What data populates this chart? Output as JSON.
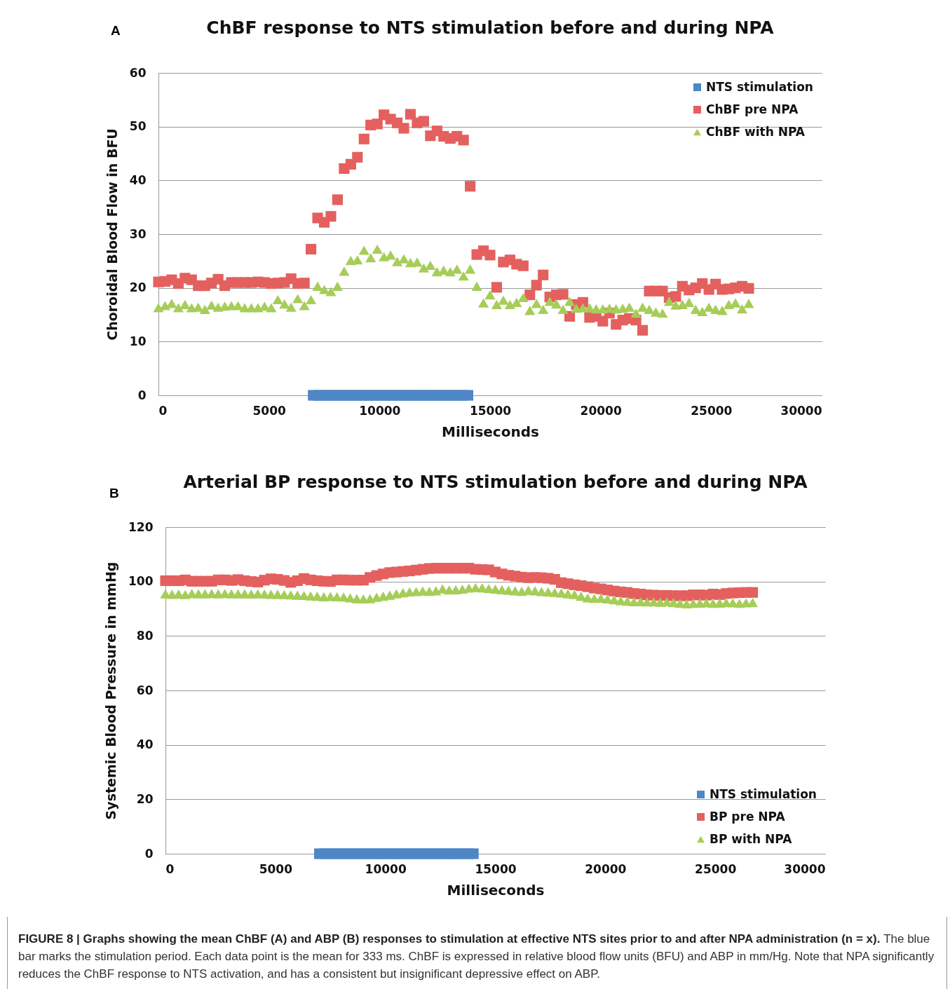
{
  "chart_data": [
    {
      "type": "scatter",
      "title": "ChBF response to NTS stimulation before and during NPA",
      "xlabel": "Milliseconds",
      "ylabel": "Choroidal Blood Flow in BFU",
      "annotations": [
        "A"
      ],
      "xlim": [
        0,
        30000
      ],
      "xticks": [
        0,
        5000,
        10000,
        15000,
        20000,
        25000,
        30000
      ],
      "ylim": [
        0,
        60
      ],
      "yticks": [
        0,
        10,
        20,
        30,
        40,
        50,
        60
      ],
      "grid": "y",
      "legend": "top right",
      "x": [
        0,
        300,
        600,
        900,
        1200,
        1500,
        1800,
        2100,
        2400,
        2700,
        3000,
        3300,
        3600,
        3900,
        4200,
        4500,
        4800,
        5100,
        5400,
        5700,
        6000,
        6300,
        6600,
        6900,
        7200,
        7500,
        7800,
        8100,
        8400,
        8700,
        9000,
        9300,
        9600,
        9900,
        10200,
        10500,
        10800,
        11100,
        11400,
        11700,
        12000,
        12300,
        12600,
        12900,
        13200,
        13500,
        13800,
        14100,
        14400,
        14700,
        15000,
        15300,
        15600,
        15900,
        16200,
        16500,
        16800,
        17100,
        17400,
        17700,
        18000,
        18300,
        18600,
        18900,
        19200,
        19500,
        19800,
        20100,
        20400,
        20700,
        21000,
        21300,
        21600,
        21900,
        22200,
        22500,
        22800,
        23100,
        23400,
        23700,
        24000,
        24300,
        24600,
        24900,
        25200,
        25500,
        25800,
        26100,
        26400,
        26700
      ],
      "series": [
        {
          "name": "NTS stimulation",
          "color": "#4f86c6",
          "marker": "square",
          "x": [
            7000,
            7250,
            7500,
            7750,
            8000,
            8250,
            8500,
            8750,
            9000,
            9250,
            9500,
            9750,
            10000,
            10250,
            10500,
            10750,
            11000,
            11250,
            11500,
            11750,
            12000,
            12250,
            12500,
            12750,
            13000,
            13250,
            13500,
            13750,
            14000
          ],
          "values": [
            0,
            0,
            0,
            0,
            0,
            0,
            0,
            0,
            0,
            0,
            0,
            0,
            0,
            0,
            0,
            0,
            0,
            0,
            0,
            0,
            0,
            0,
            0,
            0,
            0,
            0,
            0,
            0,
            0
          ]
        },
        {
          "name": "ChBF pre NPA",
          "color": "#e4605e",
          "marker": "square",
          "values": [
            21.1,
            21.2,
            21.5,
            20.8,
            21.8,
            21.5,
            20.4,
            20.4,
            20.9,
            21.6,
            20.4,
            21.0,
            21.0,
            21.0,
            21.0,
            21.1,
            21.0,
            20.8,
            20.9,
            21.0,
            21.7,
            20.8,
            20.9,
            27.2,
            33.0,
            32.2,
            33.3,
            36.4,
            42.2,
            43.0,
            44.3,
            47.7,
            50.3,
            50.5,
            52.2,
            51.4,
            50.7,
            49.7,
            52.3,
            50.7,
            51.0,
            48.3,
            49.2,
            48.2,
            47.8,
            48.2,
            47.5,
            38.9,
            26.2,
            26.9,
            26.1,
            20.1,
            24.8,
            25.2,
            24.4,
            24.1,
            18.7,
            20.5,
            22.4,
            18.3,
            18.7,
            18.8,
            14.7,
            16.9,
            17.3,
            14.5,
            14.7,
            13.8,
            15.3,
            13.2,
            14.0,
            14.3,
            14.0,
            12.1,
            19.4,
            19.4,
            19.4,
            18.2,
            18.4,
            20.3,
            19.6,
            20.0,
            20.8,
            19.7,
            20.7,
            19.7,
            19.8,
            20.0,
            20.3,
            19.9
          ]
        },
        {
          "name": "ChBF with NPA",
          "color": "#a6cd58",
          "marker": "triangle",
          "values": [
            16.3,
            16.7,
            17.1,
            16.3,
            16.9,
            16.3,
            16.4,
            16.0,
            16.8,
            16.4,
            16.6,
            16.7,
            16.7,
            16.3,
            16.3,
            16.3,
            16.6,
            16.3,
            17.8,
            17.0,
            16.4,
            18.0,
            16.7,
            17.8,
            20.3,
            19.7,
            19.3,
            20.3,
            23.1,
            25.1,
            25.2,
            27.0,
            25.6,
            27.2,
            25.8,
            26.1,
            24.9,
            25.4,
            24.7,
            24.8,
            23.7,
            24.2,
            23.0,
            23.3,
            23.0,
            23.5,
            22.2,
            23.5,
            20.3,
            17.2,
            18.7,
            16.9,
            17.7,
            16.9,
            17.3,
            18.2,
            15.8,
            17.1,
            16.0,
            17.5,
            17.0,
            16.0,
            17.5,
            16.2,
            16.3,
            16.3,
            16.1,
            16.1,
            16.2,
            16.1,
            16.2,
            16.4,
            15.3,
            16.4,
            16.0,
            15.5,
            15.3,
            17.5,
            16.8,
            16.9,
            17.3,
            16.0,
            15.6,
            16.4,
            16.0,
            15.8,
            16.9,
            17.2,
            16.1,
            17.1
          ]
        }
      ]
    },
    {
      "type": "scatter",
      "title": "Arterial BP response to NTS stimulation before and during NPA",
      "xlabel": "Milliseconds",
      "ylabel": "Systemic Blood Pressure in mmHg",
      "annotations": [
        "B",
        "FIGURE 8 | Graphs showing the mean ChBF (A) and ABP (B) responses to stimulation at effective NTS sites prior to and after NPA administration (n = x).",
        "The blue bar marks the stimulation period. Each data point is the mean for 333 ms. ChBF is expressed in relative blood flow units (BFU) and ABP in mm/Hg. Note that NPA significantly reduces the ChBF response to NTS activation, and has a consistent but insignificant depressive effect on ABP."
      ],
      "xlim": [
        0,
        30000
      ],
      "xticks": [
        0,
        5000,
        10000,
        15000,
        20000,
        25000,
        30000
      ],
      "ylim": [
        0,
        120
      ],
      "yticks": [
        0,
        20,
        40,
        60,
        80,
        100,
        120
      ],
      "grid": "y",
      "legend": "bottom right",
      "x": [
        0,
        300,
        600,
        900,
        1200,
        1500,
        1800,
        2100,
        2400,
        2700,
        3000,
        3300,
        3600,
        3900,
        4200,
        4500,
        4800,
        5100,
        5400,
        5700,
        6000,
        6300,
        6600,
        6900,
        7200,
        7500,
        7800,
        8100,
        8400,
        8700,
        9000,
        9300,
        9600,
        9900,
        10200,
        10500,
        10800,
        11100,
        11400,
        11700,
        12000,
        12300,
        12600,
        12900,
        13200,
        13500,
        13800,
        14100,
        14400,
        14700,
        15000,
        15300,
        15600,
        15900,
        16200,
        16500,
        16800,
        17100,
        17400,
        17700,
        18000,
        18300,
        18600,
        18900,
        19200,
        19500,
        19800,
        20100,
        20400,
        20700,
        21000,
        21300,
        21600,
        21900,
        22200,
        22500,
        22800,
        23100,
        23400,
        23700,
        24000,
        24300,
        24600,
        24900,
        25200,
        25500,
        25800,
        26100,
        26400,
        26700
      ],
      "series": [
        {
          "name": "NTS stimulation",
          "color": "#4f86c6",
          "marker": "square",
          "x": [
            7000,
            7250,
            7500,
            7750,
            8000,
            8250,
            8500,
            8750,
            9000,
            9250,
            9500,
            9750,
            10000,
            10250,
            10500,
            10750,
            11000,
            11250,
            11500,
            11750,
            12000,
            12250,
            12500,
            12750,
            13000,
            13250,
            13500,
            13750,
            14000
          ],
          "values": [
            0,
            0,
            0,
            0,
            0,
            0,
            0,
            0,
            0,
            0,
            0,
            0,
            0,
            0,
            0,
            0,
            0,
            0,
            0,
            0,
            0,
            0,
            0,
            0,
            0,
            0,
            0,
            0,
            0
          ]
        },
        {
          "name": "BP pre NPA",
          "color": "#e4605e",
          "marker": "square",
          "values": [
            100.3,
            100.3,
            100.3,
            100.6,
            100.1,
            100.1,
            100.1,
            100.1,
            100.6,
            100.6,
            100.4,
            100.7,
            100.3,
            100.0,
            99.8,
            100.5,
            101.0,
            100.8,
            100.4,
            99.7,
            100.3,
            101.1,
            100.6,
            100.3,
            100.1,
            100.0,
            100.6,
            100.6,
            100.5,
            100.5,
            100.5,
            101.5,
            102.2,
            102.8,
            103.3,
            103.5,
            103.7,
            103.9,
            104.2,
            104.5,
            104.8,
            104.9,
            104.9,
            104.9,
            104.9,
            104.9,
            104.9,
            104.5,
            104.4,
            104.3,
            103.5,
            102.8,
            102.3,
            102.0,
            101.6,
            101.4,
            101.5,
            101.4,
            101.2,
            100.8,
            99.6,
            99.2,
            98.8,
            98.5,
            98.1,
            97.6,
            97.3,
            96.9,
            96.5,
            96.2,
            96.0,
            95.6,
            95.4,
            95.1,
            95.0,
            94.9,
            94.9,
            94.8,
            94.8,
            94.8,
            95.1,
            95.1,
            95.0,
            95.4,
            95.2,
            95.6,
            95.8,
            95.9,
            96.0,
            96.0
          ]
        },
        {
          "name": "BP with NPA",
          "color": "#a6cd58",
          "marker": "triangle",
          "values": [
            95.5,
            95.3,
            95.4,
            95.2,
            95.6,
            95.5,
            95.5,
            95.6,
            95.5,
            95.6,
            95.5,
            95.5,
            95.5,
            95.4,
            95.5,
            95.4,
            95.3,
            95.3,
            95.2,
            95.1,
            95.0,
            94.9,
            94.7,
            94.6,
            94.4,
            94.5,
            94.4,
            94.3,
            94.0,
            93.7,
            93.6,
            93.7,
            94.2,
            94.6,
            95.0,
            95.5,
            95.9,
            96.2,
            96.3,
            96.5,
            96.4,
            96.6,
            97.3,
            96.9,
            97.0,
            97.2,
            97.6,
            97.8,
            97.7,
            97.4,
            97.2,
            97.0,
            96.8,
            96.6,
            96.4,
            96.8,
            96.6,
            96.3,
            96.2,
            96.0,
            95.8,
            95.5,
            95.2,
            94.6,
            94.0,
            93.8,
            93.9,
            93.6,
            93.3,
            93.0,
            92.8,
            92.6,
            92.6,
            92.5,
            92.5,
            92.4,
            92.5,
            92.3,
            92.0,
            91.8,
            92.0,
            92.1,
            92.2,
            92.0,
            92.1,
            92.3,
            92.2,
            92.0,
            92.2,
            92.3
          ]
        }
      ]
    }
  ]
}
